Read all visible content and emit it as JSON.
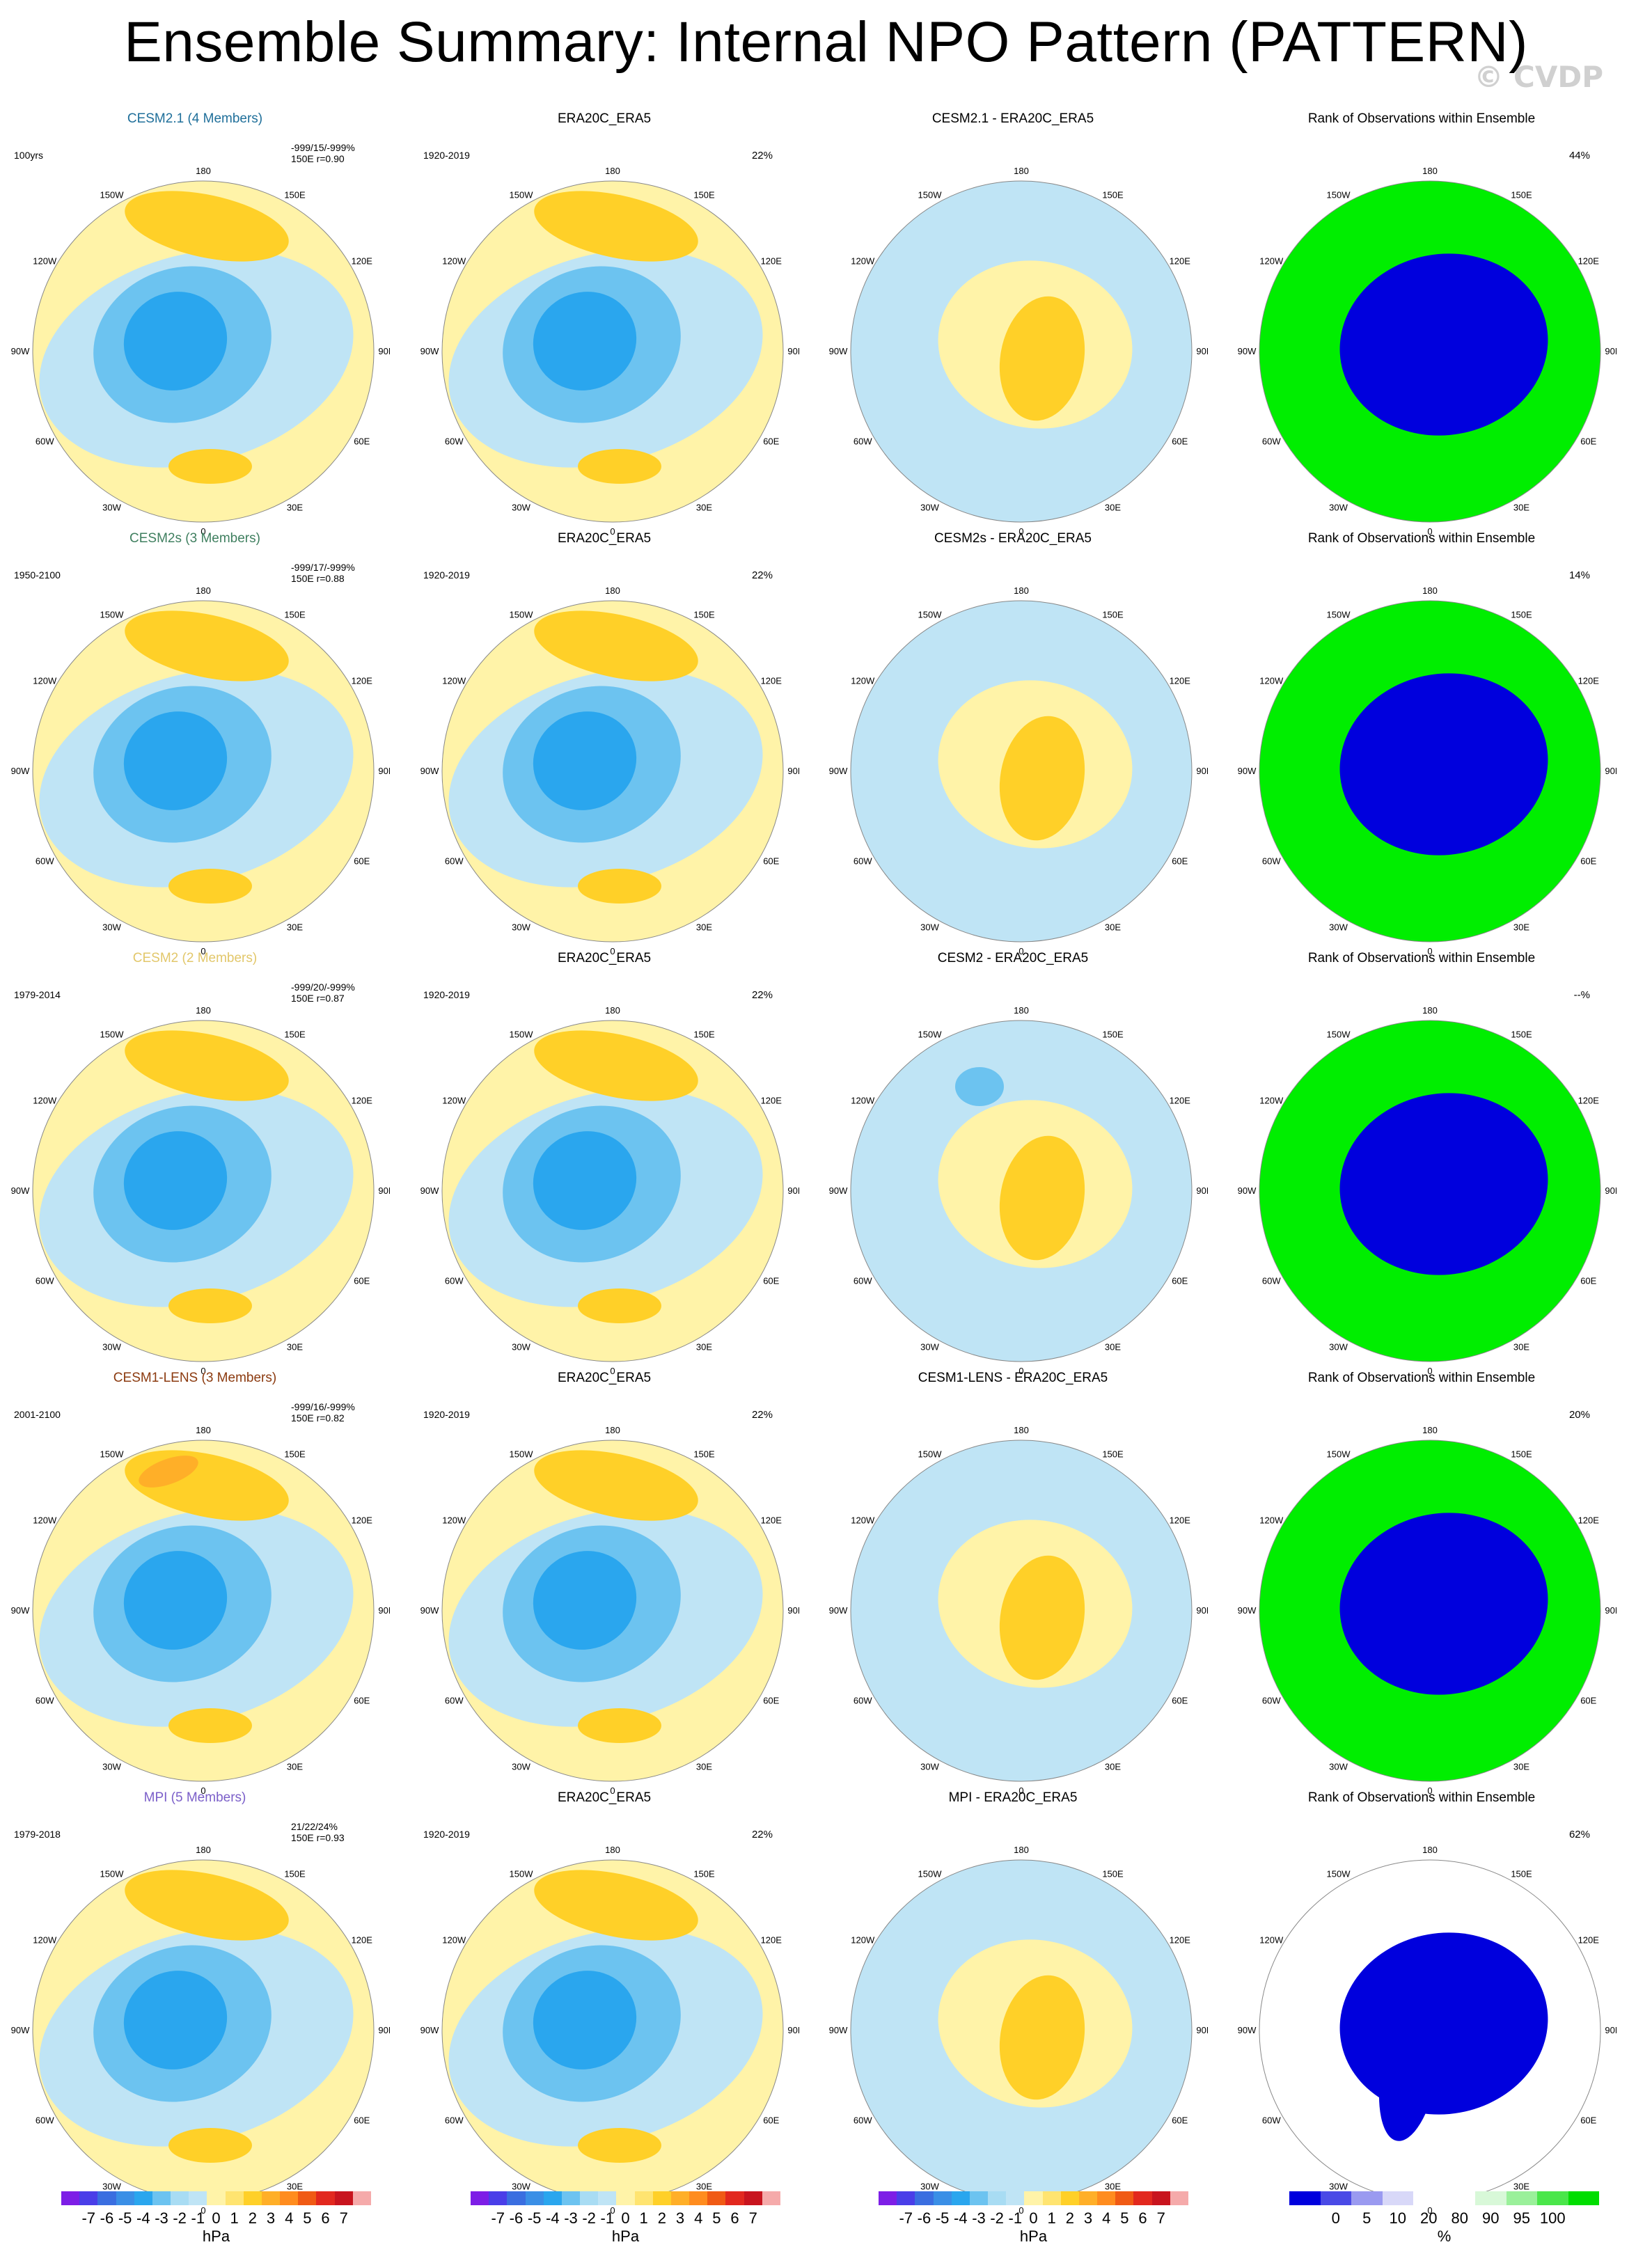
{
  "title": "Ensemble Summary: Internal NPO Pattern (PATTERN)",
  "copyright": "© CVDP",
  "lon_labels": [
    "180",
    "150E",
    "120E",
    "90E",
    "60E",
    "30E",
    "0",
    "30W",
    "60W",
    "90W",
    "120W",
    "150W"
  ],
  "rows": [
    {
      "ens": {
        "title": "CESM2.1 (4 Members)",
        "color": "#1f6f9a",
        "period": "100yrs",
        "stats1": "-999/15/-999%",
        "stats2": "150E",
        "stats3": "r=0.90",
        "tick_color": "#1f6f9a"
      },
      "obs": {
        "title": "ERA20C_ERA5",
        "period": "1920-2019",
        "pct": "22%"
      },
      "diff": {
        "title": "CESM2.1 - ERA20C_ERA5"
      },
      "rank": {
        "title": "Rank of Observations within Ensemble",
        "pct": "44%"
      }
    },
    {
      "ens": {
        "title": "CESM2s (3 Members)",
        "color": "#3f7f5f",
        "period": "1950-2100",
        "stats1": "-999/17/-999%",
        "stats2": "150E",
        "stats3": "r=0.88",
        "tick_color": "#3f7f5f"
      },
      "obs": {
        "title": "ERA20C_ERA5",
        "period": "1920-2019",
        "pct": "22%"
      },
      "diff": {
        "title": "CESM2s - ERA20C_ERA5"
      },
      "rank": {
        "title": "Rank of Observations within Ensemble",
        "pct": "14%"
      }
    },
    {
      "ens": {
        "title": "CESM2 (2 Members)",
        "color": "#e2c76a",
        "period": "1979-2014",
        "stats1": "-999/20/-999%",
        "stats2": "150E",
        "stats3": "r=0.87",
        "tick_color": "#e2c76a"
      },
      "obs": {
        "title": "ERA20C_ERA5",
        "period": "1920-2019",
        "pct": "22%"
      },
      "diff": {
        "title": "CESM2 - ERA20C_ERA5"
      },
      "rank": {
        "title": "Rank of Observations within Ensemble",
        "pct": "--%"
      }
    },
    {
      "ens": {
        "title": "CESM1-LENS (3 Members)",
        "color": "#8b3a0f",
        "period": "2001-2100",
        "stats1": "-999/16/-999%",
        "stats2": "150E",
        "stats3": "r=0.82",
        "tick_color": "#8b3a0f"
      },
      "obs": {
        "title": "ERA20C_ERA5",
        "period": "1920-2019",
        "pct": "22%"
      },
      "diff": {
        "title": "CESM1-LENS - ERA20C_ERA5"
      },
      "rank": {
        "title": "Rank of Observations within Ensemble",
        "pct": "20%"
      }
    },
    {
      "ens": {
        "title": "MPI (5 Members)",
        "color": "#7b5fc9",
        "period": "1979-2018",
        "stats1": "21/22/24%",
        "stats2": "150E",
        "stats3": "r=0.93",
        "tick_color": "#7b5fc9"
      },
      "obs": {
        "title": "ERA20C_ERA5",
        "period": "1920-2019",
        "pct": "22%"
      },
      "diff": {
        "title": "MPI - ERA20C_ERA5"
      },
      "rank": {
        "title": "Rank of Observations within Ensemble",
        "pct": "62%"
      }
    }
  ],
  "colorbar_hpa": {
    "colors": [
      "#7d1ee6",
      "#4a3ee8",
      "#3a6ee0",
      "#3a8fe6",
      "#2aa6ee",
      "#6cc3f0",
      "#a8dcf3",
      "#bfe4f5",
      "#fff3a8",
      "#ffe470",
      "#ffd028",
      "#ffaf28",
      "#ff8c1e",
      "#f05a14",
      "#e2281e",
      "#c8141e",
      "#f5aaaa"
    ],
    "labels": [
      "-7",
      "-6",
      "-5",
      "-4",
      "-3",
      "-2",
      "-1",
      "0",
      "1",
      "2",
      "3",
      "4",
      "5",
      "6",
      "7"
    ],
    "unit": "hPa"
  },
  "colorbar_rank": {
    "colors": [
      "#0000dd",
      "#4a4ae6",
      "#9a9af0",
      "#d8d8f8",
      "#ffffff",
      "#ffffff",
      "#d8f8d8",
      "#9af09a",
      "#4ae64a",
      "#00dd00"
    ],
    "labels": [
      "0",
      "5",
      "10",
      "20",
      "80",
      "90",
      "95",
      "100"
    ],
    "unit": "%"
  },
  "map_colors": {
    "yellow": "#fff3a8",
    "orange": "#ffd028",
    "dorange": "#ffaf28",
    "lblue": "#bfe4f5",
    "mblue": "#6cc3f0",
    "blue": "#3a8fe6",
    "dblue": "#2aa6ee",
    "rank_blue": "#0000dd",
    "rank_green": "#00ee00",
    "rank_lgreen": "#d8f8d8",
    "white": "#ffffff"
  }
}
